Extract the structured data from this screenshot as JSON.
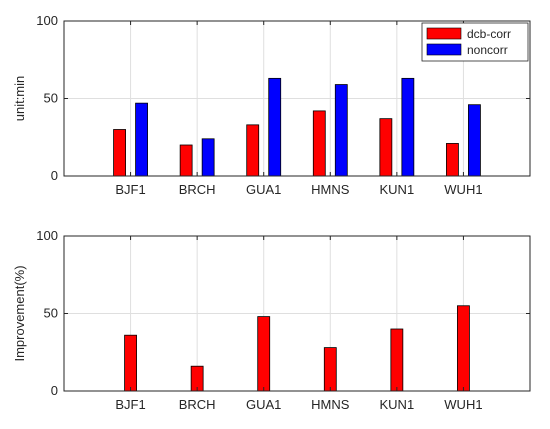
{
  "chart_data": [
    {
      "type": "bar",
      "categories": [
        "BJF1",
        "BRCH",
        "GUA1",
        "HMNS",
        "KUN1",
        "WUH1"
      ],
      "series": [
        {
          "name": "dcb-corr",
          "color": "#ff0000",
          "values": [
            30,
            20,
            33,
            42,
            37,
            21
          ]
        },
        {
          "name": "noncorr",
          "color": "#0000ff",
          "values": [
            47,
            24,
            63,
            59,
            63,
            46
          ]
        }
      ],
      "ylabel": "unit:min",
      "ylim": [
        0,
        100
      ],
      "yticks": [
        0,
        50,
        100
      ],
      "grid": true,
      "legend": "top-right"
    },
    {
      "type": "bar",
      "categories": [
        "BJF1",
        "BRCH",
        "GUA1",
        "HMNS",
        "KUN1",
        "WUH1"
      ],
      "series": [
        {
          "color": "#ff0000",
          "values": [
            36,
            16,
            48,
            28,
            40,
            55
          ]
        }
      ],
      "ylabel": "Improvement(%)",
      "ylim": [
        0,
        100
      ],
      "yticks": [
        0,
        50,
        100
      ],
      "grid": true
    }
  ]
}
